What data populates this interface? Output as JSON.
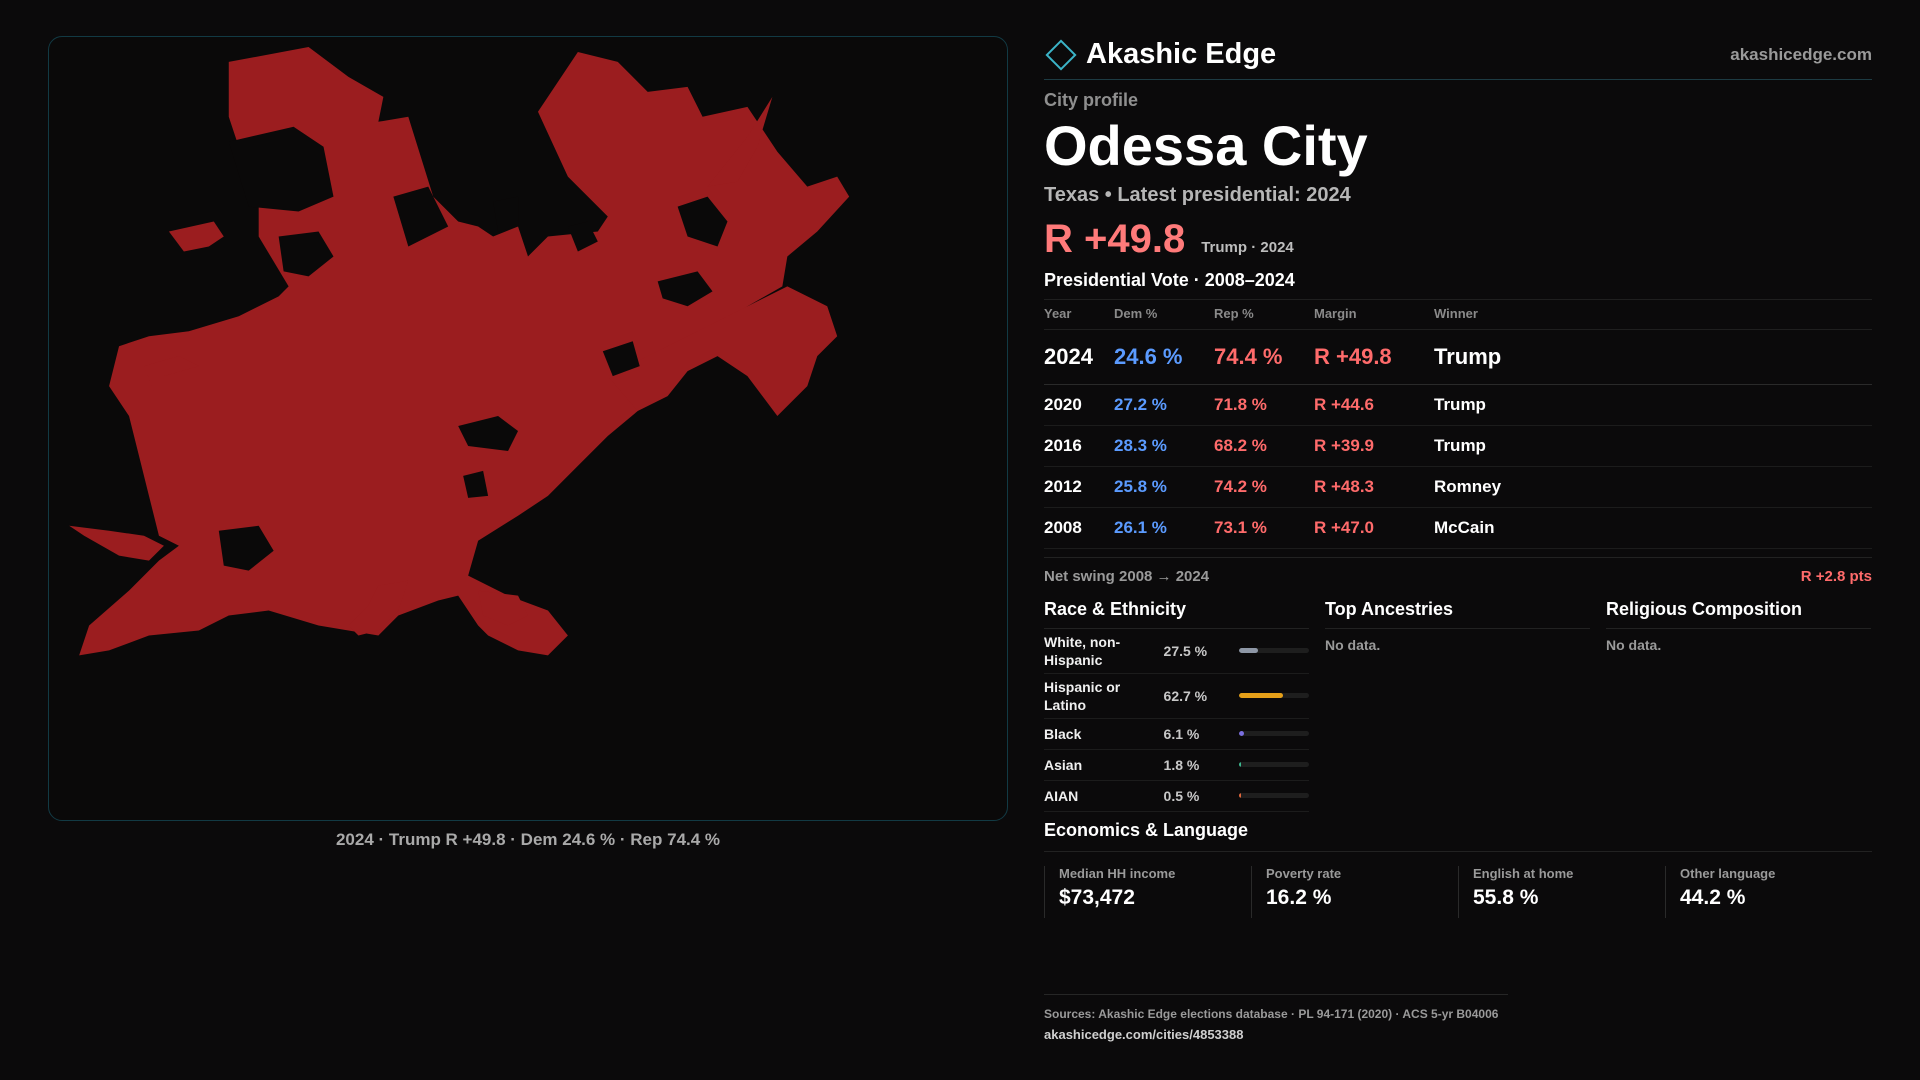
{
  "colors": {
    "rep": "#9b1d1f",
    "dem": "#5b9bff",
    "accent": "#3bb4c8"
  },
  "brand": {
    "name": "Akashic Edge",
    "url": "akashicedge.com",
    "icon": "diamond-logo-icon"
  },
  "map": {
    "caption": "2024 · Trump R +49.8 · Dem 24.6 % · Rep 74.4 %"
  },
  "profile": {
    "kicker": "City profile",
    "city": "Odessa City",
    "subtitle": "Texas • Latest presidential: 2024",
    "margin": "R +49.8",
    "margin_note": "Trump · 2024"
  },
  "votes": {
    "title": "Presidential Vote · 2008–2024",
    "headers": [
      "Year",
      "Dem %",
      "Rep %",
      "Margin",
      "Winner"
    ],
    "rows": [
      {
        "year": "2024",
        "dem": "24.6 %",
        "rep": "74.4 %",
        "margin": "R +49.8",
        "winner": "Trump"
      },
      {
        "year": "2020",
        "dem": "27.2 %",
        "rep": "71.8 %",
        "margin": "R +44.6",
        "winner": "Trump"
      },
      {
        "year": "2016",
        "dem": "28.3 %",
        "rep": "68.2 %",
        "margin": "R +39.9",
        "winner": "Trump"
      },
      {
        "year": "2012",
        "dem": "25.8 %",
        "rep": "74.2 %",
        "margin": "R +48.3",
        "winner": "Romney"
      },
      {
        "year": "2008",
        "dem": "26.1 %",
        "rep": "73.1 %",
        "margin": "R +47.0",
        "winner": "McCain"
      }
    ],
    "swing_label": "Net swing 2008 → 2024",
    "swing_value": "R +2.8 pts"
  },
  "race": {
    "title": "Race & Ethnicity",
    "rows": [
      {
        "label": "White, non-Hispanic",
        "pct": "27.5 %",
        "value": 27.5,
        "color": "#8e97a6"
      },
      {
        "label": "Hispanic or Latino",
        "pct": "62.7 %",
        "value": 62.7,
        "color": "#e6a019"
      },
      {
        "label": "Black",
        "pct": "6.1 %",
        "value": 6.1,
        "color": "#7b6fe0"
      },
      {
        "label": "Asian",
        "pct": "1.8 %",
        "value": 1.8,
        "color": "#3cb88f"
      },
      {
        "label": "AIAN",
        "pct": "0.5 %",
        "value": 0.5,
        "color": "#e0673c"
      }
    ]
  },
  "ancestries": {
    "title": "Top Ancestries",
    "empty": "No data."
  },
  "religion": {
    "title": "Religious Composition",
    "empty": "No data."
  },
  "econ": {
    "title": "Economics & Language",
    "cards": [
      {
        "label": "Median HH income",
        "value": "$73,472"
      },
      {
        "label": "Poverty rate",
        "value": "16.2 %"
      },
      {
        "label": "English at home",
        "value": "55.8 %"
      },
      {
        "label": "Other language",
        "value": "44.2 %"
      }
    ]
  },
  "sources": {
    "line": "Sources: Akashic Edge elections database · PL 94-171 (2020) · ACS 5-yr B04006",
    "url": "akashicedge.com/cities/4853388"
  }
}
